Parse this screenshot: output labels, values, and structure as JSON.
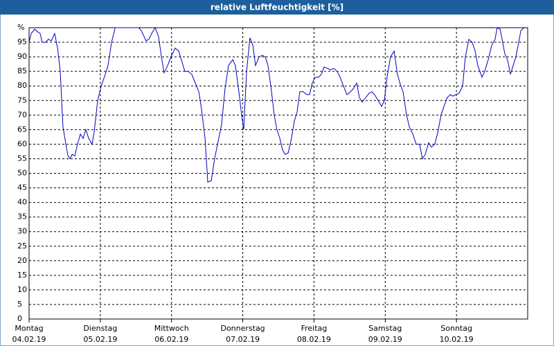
{
  "chart_data": {
    "type": "line",
    "title": "relative Luftfeuchtigkeit [%]",
    "xlim": [
      0,
      168
    ],
    "ylim": [
      0,
      100
    ],
    "xticks": [
      {
        "value": 0,
        "label": [
          "Montag",
          "04.02.19"
        ]
      },
      {
        "value": 24,
        "label": [
          "Dienstag",
          "05.02.19"
        ]
      },
      {
        "value": 48,
        "label": [
          "Mittwoch",
          "06.02.19"
        ]
      },
      {
        "value": 72,
        "label": [
          "Donnerstag",
          "07.02.19"
        ]
      },
      {
        "value": 96,
        "label": [
          "Freitag",
          "08.02.19"
        ]
      },
      {
        "value": 120,
        "label": [
          "Samstag",
          "09.02.19"
        ]
      },
      {
        "value": 144,
        "label": [
          "Sonntag",
          "10.02.19"
        ]
      }
    ],
    "yticks": [
      0,
      5,
      10,
      15,
      20,
      25,
      30,
      35,
      40,
      45,
      50,
      55,
      60,
      65,
      70,
      75,
      80,
      85,
      90,
      95,
      {
        "value": 100,
        "label": "%"
      }
    ],
    "grid": true,
    "series": [
      {
        "color": "#0000c0",
        "x": [
          0,
          0.7,
          1.9,
          3.0,
          3.7,
          4.4,
          5.6,
          6.5,
          7.5,
          8.6,
          9.6,
          10.5,
          11.4,
          12.4,
          13.1,
          13.8,
          14.5,
          15.4,
          16.3,
          17.3,
          18.2,
          19.1,
          20.1,
          21.2,
          21.9,
          23.1,
          24.3,
          25.7,
          26.6,
          27.8,
          29.0,
          31.0,
          34.1,
          36.9,
          37.8,
          38.7,
          39.4,
          40.4,
          41.3,
          42.5,
          43.6,
          44.6,
          45.5,
          46.7,
          47.8,
          49.2,
          50.4,
          51.6,
          52.5,
          53.7,
          54.8,
          56.0,
          57.2,
          58.1,
          59.3,
          60.2,
          61.4,
          62.5,
          63.7,
          64.9,
          66.0,
          67.2,
          68.6,
          69.5,
          70.7,
          71.6,
          72.3,
          73.3,
          74.4,
          75.4,
          76.3,
          77.5,
          78.6,
          79.6,
          80.5,
          81.7,
          82.6,
          83.5,
          84.5,
          85.4,
          86.3,
          87.3,
          88.4,
          89.4,
          90.3,
          91.2,
          92.4,
          93.6,
          94.5,
          95.4,
          96.4,
          97.5,
          98.5,
          99.4,
          100.6,
          101.5,
          102.7,
          103.8,
          104.8,
          105.9,
          107.1,
          108.3,
          109.2,
          110.4,
          111.3,
          112.2,
          113.4,
          114.6,
          115.5,
          116.4,
          117.6,
          118.8,
          119.7,
          120.6,
          121.8,
          123.0,
          124.1,
          125.1,
          126.0,
          127.2,
          128.1,
          129.3,
          130.4,
          131.6,
          132.5,
          133.5,
          134.6,
          135.6,
          136.7,
          137.7,
          138.8,
          139.8,
          140.9,
          141.9,
          142.8,
          143.7,
          144.9,
          146.1,
          147.0,
          148.2,
          149.3,
          150.3,
          151.2,
          152.6,
          153.5,
          154.7,
          155.9,
          157.0,
          157.7,
          158.7,
          159.4,
          160.3,
          161.2,
          162.2,
          163.1,
          164.0,
          165.0,
          165.7,
          166.8
        ],
        "values": [
          95,
          98,
          99.5,
          98.5,
          98,
          95,
          95,
          96,
          95.5,
          98,
          93,
          85,
          66,
          60,
          56,
          55,
          56.5,
          56,
          60,
          63.5,
          62,
          65,
          62,
          60,
          64,
          75,
          80,
          84,
          87,
          95,
          100,
          100,
          100,
          100,
          99,
          97,
          95.5,
          96,
          98,
          100,
          97,
          90,
          84.5,
          87,
          90,
          93,
          92,
          88,
          85,
          85,
          84,
          81,
          78,
          72,
          62,
          47,
          47.5,
          55,
          61,
          67,
          79,
          87,
          89,
          87,
          78,
          70,
          65,
          85,
          96.5,
          94,
          87,
          90,
          90.5,
          90,
          87,
          78,
          70,
          65,
          62,
          58,
          56.5,
          57,
          62,
          68,
          71,
          78,
          78,
          77,
          77,
          81,
          83,
          83,
          84,
          86.5,
          86,
          85.5,
          86,
          85,
          83,
          80,
          77,
          78,
          79,
          81,
          76,
          74.5,
          76,
          77.5,
          78,
          77,
          75,
          73,
          75,
          83,
          90,
          92,
          84,
          80.5,
          78,
          70,
          66,
          63.5,
          60,
          60,
          55,
          56.5,
          60.5,
          59,
          60,
          64,
          70,
          73,
          76,
          77,
          76.5,
          77,
          77.5,
          80,
          90,
          96,
          95,
          92,
          87,
          83,
          85,
          89,
          94,
          96,
          100,
          99.5,
          96,
          91,
          89,
          84,
          87,
          90,
          95,
          99,
          100
        ]
      }
    ]
  }
}
